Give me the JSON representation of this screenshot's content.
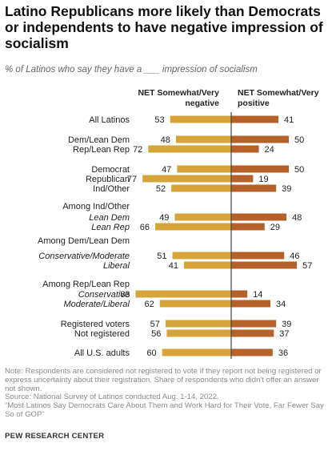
{
  "title": "Latino Republicans more likely than Democrats or independents to have negative impression of socialism",
  "subtitle": "% of Latinos who say they have a ___ impression of socialism",
  "colors": {
    "negative": "#d6a53a",
    "positive": "#b5612a",
    "axis": "#444444",
    "label": "#222222"
  },
  "chart_data": {
    "type": "bar",
    "orientation": "diverging-horizontal",
    "series": [
      {
        "name": "NET Somewhat/Very negative",
        "key": "negative"
      },
      {
        "name": "NET Somewhat/Very positive",
        "key": "positive"
      }
    ],
    "headers": {
      "negative": "NET Somewhat/Very negative",
      "positive": "NET Somewhat/Very positive"
    },
    "rows": [
      {
        "label": "All Latinos",
        "italic": false,
        "negative": 53,
        "positive": 41
      },
      {
        "label": "Dem/Lean Dem",
        "italic": false,
        "negative": 48,
        "positive": 50
      },
      {
        "label": "Rep/Lean Rep",
        "italic": false,
        "negative": 72,
        "positive": 24
      },
      {
        "label": "Democrat",
        "italic": false,
        "negative": 47,
        "positive": 50
      },
      {
        "label": "Republican",
        "italic": false,
        "negative": 77,
        "positive": 19
      },
      {
        "label": "Ind/Other",
        "italic": false,
        "negative": 52,
        "positive": 39
      },
      {
        "label": "Lean Dem",
        "italic": true,
        "negative": 49,
        "positive": 48
      },
      {
        "label": "Lean Rep",
        "italic": true,
        "negative": 66,
        "positive": 29
      },
      {
        "label": "Conservative/Moderate",
        "italic": true,
        "negative": 51,
        "positive": 46
      },
      {
        "label": "Liberal",
        "italic": true,
        "negative": 41,
        "positive": 57
      },
      {
        "label": "Conservative",
        "italic": true,
        "negative": 83,
        "positive": 14
      },
      {
        "label": "Moderate/Liberal",
        "italic": true,
        "negative": 62,
        "positive": 34
      },
      {
        "label": "Registered voters",
        "italic": false,
        "negative": 57,
        "positive": 39
      },
      {
        "label": "Not registered",
        "italic": false,
        "negative": 56,
        "positive": 37
      },
      {
        "label": "All U.S. adults",
        "italic": false,
        "negative": 60,
        "positive": 36
      }
    ],
    "group_headers": [
      {
        "label": "Among Ind/Other",
        "before_row": 6
      },
      {
        "label": "Among Dem/Lean Dem",
        "before_row": 8
      },
      {
        "label": "Among Rep/Lean Rep",
        "before_row": 10
      }
    ]
  },
  "notes": {
    "note": "Note: Respondents are considered not registered to vote if they report not being registered or express uncertainty about their registration. Share of respondents who didn't offer an answer not shown.",
    "source": "Source: National Survey of Latinos conducted Aug. 1-14, 2022.",
    "report": "“Most Latinos Say Democrats Care About Them and Work Hard for Their Vote, Far Fewer Say So of GOP”"
  },
  "brand": "PEW RESEARCH CENTER"
}
